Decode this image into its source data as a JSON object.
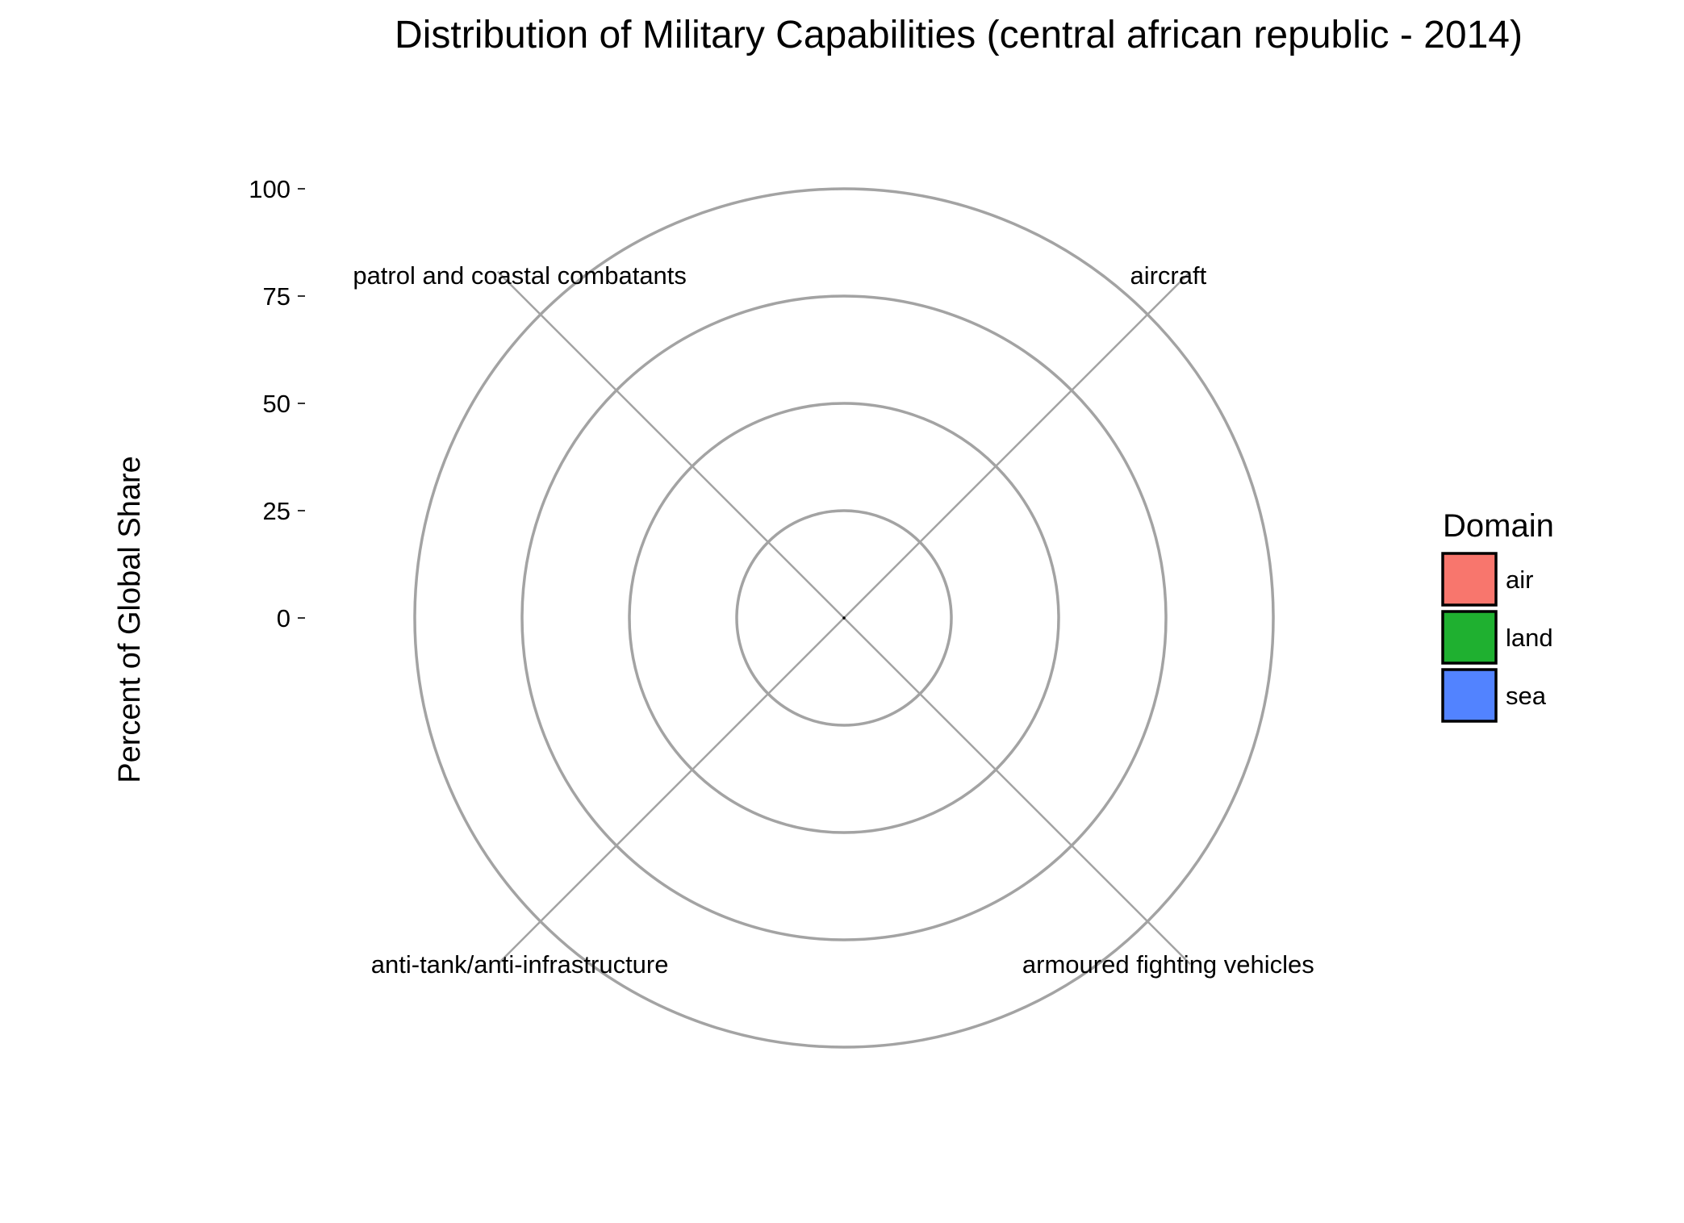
{
  "chart_data": {
    "type": "polar-bar",
    "title": "Distribution of Military Capabilities (central african republic - 2014)",
    "ylabel": "Percent of Global Share",
    "ylim": [
      0,
      100
    ],
    "yticks": [
      0,
      25,
      50,
      75,
      100
    ],
    "categories": [
      "aircraft",
      "armoured fighting vehicles",
      "anti-tank/anti-infrastructure",
      "patrol and coastal combatants"
    ],
    "series": [
      {
        "category": "aircraft",
        "domain": "air",
        "value": 0
      },
      {
        "category": "armoured fighting vehicles",
        "domain": "land",
        "value": 0
      },
      {
        "category": "anti-tank/anti-infrastructure",
        "domain": "land",
        "value": 0
      },
      {
        "category": "patrol and coastal combatants",
        "domain": "sea",
        "value": 0
      }
    ],
    "legend": {
      "title": "Domain",
      "position": "right",
      "items": [
        {
          "label": "air",
          "color": "#f8766d"
        },
        {
          "label": "land",
          "color": "#1fb030"
        },
        {
          "label": "sea",
          "color": "#5283ff"
        }
      ]
    },
    "grid": true
  }
}
